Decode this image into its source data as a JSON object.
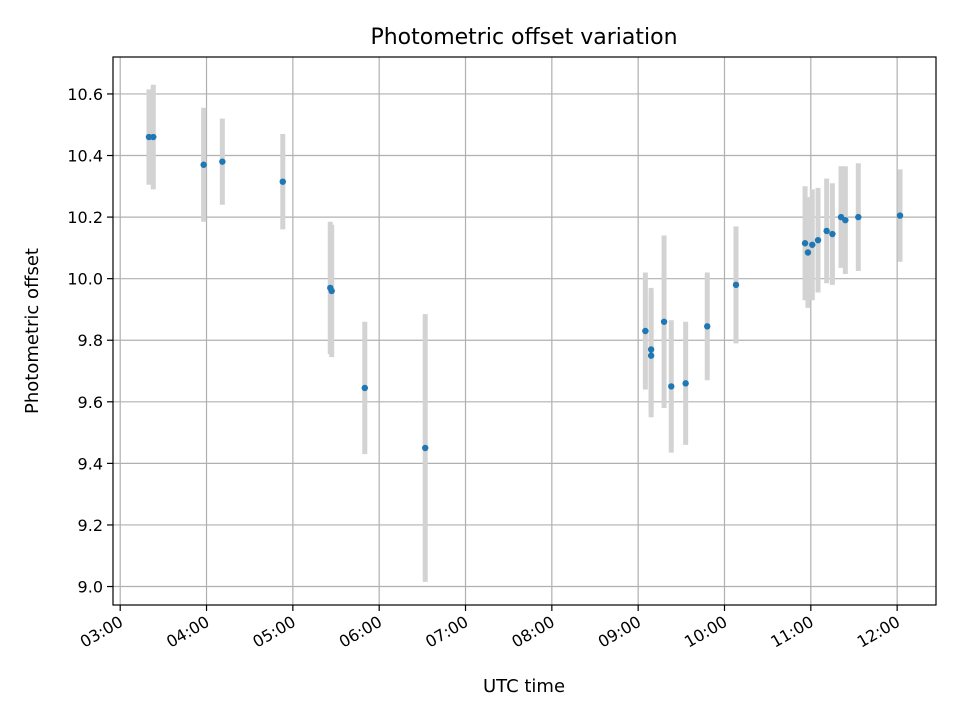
{
  "chart_data": {
    "type": "scatter",
    "title": "Photometric offset variation",
    "xlabel": "UTC time",
    "ylabel": "Photometric offset",
    "x_tick_labels": [
      "03:00",
      "04:00",
      "05:00",
      "06:00",
      "07:00",
      "08:00",
      "09:00",
      "10:00",
      "11:00",
      "12:00"
    ],
    "x_ticks": [
      "03:00",
      "04:00",
      "05:00",
      "06:00",
      "07:00",
      "08:00",
      "09:00",
      "10:00",
      "11:00",
      "12:00"
    ],
    "y_ticks": [
      9.0,
      9.2,
      9.4,
      9.6,
      9.8,
      10.0,
      10.2,
      10.4,
      10.6
    ],
    "y_tick_labels": [
      "9.0",
      "9.2",
      "9.4",
      "9.6",
      "9.8",
      "10.0",
      "10.2",
      "10.4",
      "10.6"
    ],
    "xlim": [
      "02:55",
      "12:27"
    ],
    "ylim": [
      8.94,
      10.72
    ],
    "grid": true,
    "colors": {
      "point": "#1f77b4",
      "errorbar": "#d3d3d3",
      "grid": "#b0b0b0"
    },
    "points": [
      {
        "x": "03:20",
        "y": 10.46,
        "err": 0.155
      },
      {
        "x": "03:23",
        "y": 10.46,
        "err": 0.17
      },
      {
        "x": "03:58",
        "y": 10.37,
        "err": 0.185
      },
      {
        "x": "04:11",
        "y": 10.38,
        "err": 0.14
      },
      {
        "x": "04:53",
        "y": 10.315,
        "err": 0.155
      },
      {
        "x": "05:26",
        "y": 9.97,
        "err": 0.215
      },
      {
        "x": "05:27",
        "y": 9.96,
        "err": 0.215
      },
      {
        "x": "05:50",
        "y": 9.645,
        "err": 0.215
      },
      {
        "x": "06:32",
        "y": 9.45,
        "err": 0.435
      },
      {
        "x": "09:05",
        "y": 9.83,
        "err": 0.19
      },
      {
        "x": "09:09",
        "y": 9.77,
        "err": 0.2
      },
      {
        "x": "09:09",
        "y": 9.75,
        "err": 0.2
      },
      {
        "x": "09:18",
        "y": 9.86,
        "err": 0.28
      },
      {
        "x": "09:23",
        "y": 9.65,
        "err": 0.215
      },
      {
        "x": "09:33",
        "y": 9.66,
        "err": 0.2
      },
      {
        "x": "09:48",
        "y": 9.845,
        "err": 0.175
      },
      {
        "x": "10:08",
        "y": 9.98,
        "err": 0.19
      },
      {
        "x": "10:56",
        "y": 10.115,
        "err": 0.185
      },
      {
        "x": "10:58",
        "y": 10.085,
        "err": 0.18
      },
      {
        "x": "11:01",
        "y": 10.11,
        "err": 0.18
      },
      {
        "x": "11:05",
        "y": 10.125,
        "err": 0.17
      },
      {
        "x": "11:11",
        "y": 10.155,
        "err": 0.17
      },
      {
        "x": "11:15",
        "y": 10.145,
        "err": 0.165
      },
      {
        "x": "11:21",
        "y": 10.2,
        "err": 0.165
      },
      {
        "x": "11:24",
        "y": 10.19,
        "err": 0.175
      },
      {
        "x": "11:33",
        "y": 10.2,
        "err": 0.175
      },
      {
        "x": "12:02",
        "y": 10.205,
        "err": 0.15
      }
    ]
  }
}
